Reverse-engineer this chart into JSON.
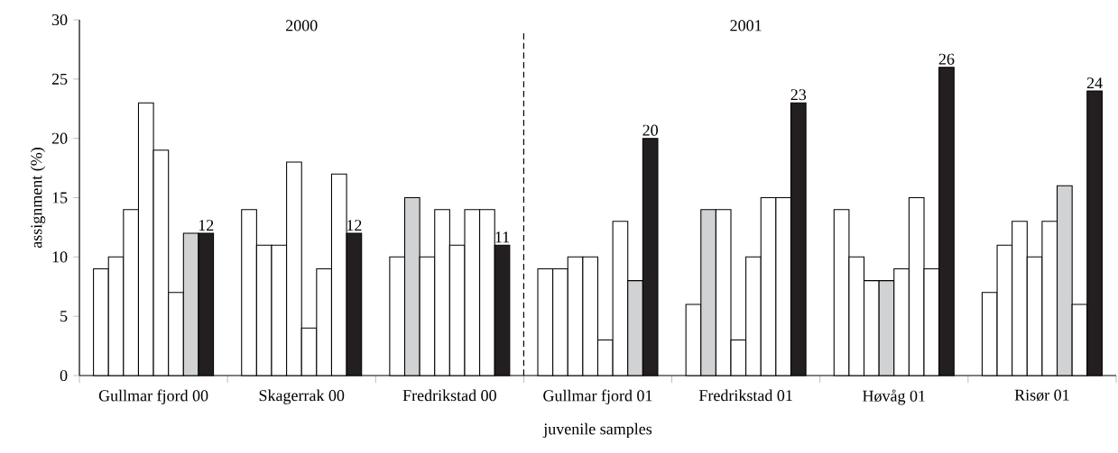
{
  "chart_data": {
    "type": "bar",
    "xlabel": "juvenile samples",
    "ylabel": "assignment (%)",
    "categories": [
      "Gullmar fjord 00",
      "Skagerrak 00",
      "Fredrikstad 00",
      "Gullmar fjord 01",
      "Fredrikstad 01",
      "Høvåg 01",
      "Risør 01"
    ],
    "series": [
      {
        "values": [
          9,
          14,
          10,
          9,
          6,
          14,
          7
        ],
        "colors": [
          "#ffffff",
          "#ffffff",
          "#ffffff",
          "#ffffff",
          "#ffffff",
          "#ffffff",
          "#ffffff"
        ]
      },
      {
        "values": [
          10,
          11,
          15,
          9,
          14,
          10,
          11
        ],
        "colors": [
          "#ffffff",
          "#ffffff",
          "#d1d2d4",
          "#ffffff",
          "#d1d2d4",
          "#ffffff",
          "#ffffff"
        ]
      },
      {
        "values": [
          14,
          11,
          10,
          10,
          14,
          8,
          13
        ],
        "colors": [
          "#ffffff",
          "#ffffff",
          "#ffffff",
          "#ffffff",
          "#ffffff",
          "#ffffff",
          "#ffffff"
        ]
      },
      {
        "values": [
          23,
          18,
          14,
          10,
          3,
          8,
          10
        ],
        "colors": [
          "#ffffff",
          "#ffffff",
          "#ffffff",
          "#ffffff",
          "#ffffff",
          "#d1d2d4",
          "#ffffff"
        ]
      },
      {
        "values": [
          19,
          4,
          11,
          3,
          10,
          9,
          13
        ],
        "colors": [
          "#ffffff",
          "#ffffff",
          "#ffffff",
          "#ffffff",
          "#ffffff",
          "#ffffff",
          "#ffffff"
        ]
      },
      {
        "values": [
          7,
          9,
          14,
          13,
          15,
          15,
          16
        ],
        "colors": [
          "#ffffff",
          "#ffffff",
          "#ffffff",
          "#ffffff",
          "#ffffff",
          "#ffffff",
          "#d1d2d4"
        ]
      },
      {
        "values": [
          12,
          17,
          14,
          8,
          15,
          9,
          6
        ],
        "colors": [
          "#d1d2d4",
          "#ffffff",
          "#ffffff",
          "#d1d2d4",
          "#ffffff",
          "#ffffff",
          "#ffffff"
        ]
      },
      {
        "values": [
          12,
          12,
          11,
          20,
          23,
          26,
          24
        ],
        "color": "#231f20",
        "value_labels": [
          "12",
          "12",
          "11",
          "20",
          "23",
          "26",
          "24"
        ]
      }
    ],
    "ylim": [
      0,
      30
    ],
    "yticks": [
      0,
      5,
      10,
      15,
      20,
      25,
      30
    ],
    "annotations": [
      "2000",
      "2001"
    ],
    "grid": false
  }
}
